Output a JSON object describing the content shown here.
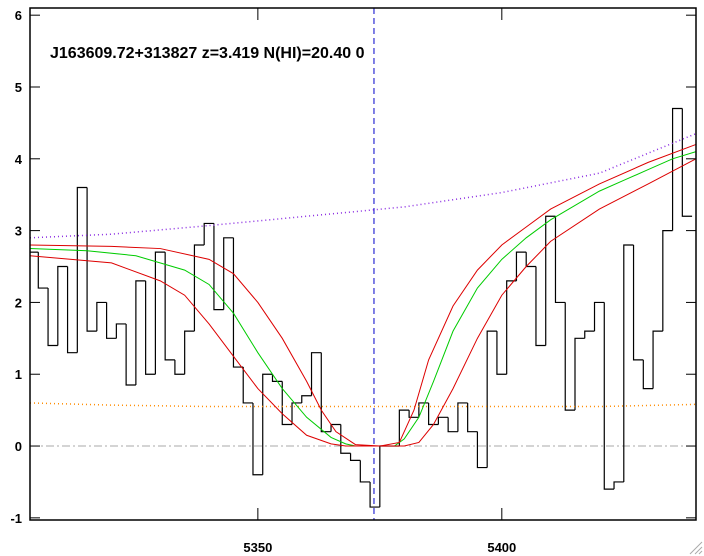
{
  "chart_data": {
    "type": "line",
    "annotation": "J163609.72+313827 z=3.419 N(HI)=20.40 0",
    "xlim": [
      5303.3,
      5439.8
    ],
    "ylim": [
      -1.03,
      6.1
    ],
    "xticks": [
      5350,
      5400
    ],
    "yticks": [
      -1,
      0,
      1,
      2,
      3,
      4,
      5,
      6
    ],
    "zero_line": 0,
    "vline": 5373.8,
    "series": [
      {
        "name": "flux",
        "style": "steps",
        "color": "#000000",
        "x": [
          5304,
          5306,
          5308,
          5310,
          5312,
          5314,
          5316,
          5318,
          5320,
          5322,
          5324,
          5326,
          5328,
          5330,
          5332,
          5334,
          5336,
          5338,
          5340,
          5342,
          5344,
          5346,
          5348,
          5350,
          5352,
          5354,
          5356,
          5358,
          5360,
          5362,
          5364,
          5366,
          5368,
          5370,
          5372,
          5374,
          5376,
          5378,
          5380,
          5382,
          5384,
          5386,
          5388,
          5390,
          5392,
          5394,
          5396,
          5398,
          5400,
          5402,
          5404,
          5406,
          5408,
          5410,
          5412,
          5414,
          5416,
          5418,
          5420,
          5422,
          5424,
          5426,
          5428,
          5430,
          5432,
          5434,
          5436,
          5438
        ],
        "values": [
          2.7,
          2.2,
          1.4,
          2.5,
          1.3,
          3.6,
          1.6,
          2.0,
          1.5,
          1.7,
          0.85,
          2.3,
          1.0,
          2.7,
          1.2,
          1.0,
          1.6,
          2.8,
          3.1,
          1.9,
          2.9,
          1.1,
          0.6,
          -0.4,
          1.0,
          0.9,
          0.3,
          0.6,
          0.7,
          1.3,
          0.2,
          0.3,
          -0.1,
          -0.2,
          -0.5,
          -0.85,
          0.0,
          0.0,
          0.5,
          0.4,
          0.6,
          0.3,
          0.4,
          0.2,
          0.6,
          0.2,
          -0.3,
          1.6,
          1.0,
          2.3,
          2.7,
          2.5,
          1.4,
          3.2,
          2.0,
          0.5,
          1.5,
          1.6,
          2.0,
          -0.6,
          -0.5,
          2.8,
          1.2,
          0.8,
          1.6,
          3.0,
          4.7,
          3.2
        ]
      },
      {
        "name": "continuum",
        "style": "dotted",
        "color": "#8a2be2",
        "x": [
          5303.3,
          5320,
          5340,
          5360,
          5380,
          5400,
          5420,
          5439.8
        ],
        "values": [
          2.9,
          2.95,
          3.07,
          3.2,
          3.33,
          3.53,
          3.8,
          4.35
        ]
      },
      {
        "name": "error",
        "style": "dotted",
        "color": "#ff8c00",
        "x": [
          5303.3,
          5320,
          5340,
          5360,
          5380,
          5400,
          5420,
          5439.8
        ],
        "values": [
          0.6,
          0.57,
          0.55,
          0.55,
          0.55,
          0.55,
          0.55,
          0.58
        ]
      },
      {
        "name": "fit",
        "style": "solid",
        "color": "#00cc00",
        "x": [
          5303.3,
          5315,
          5325,
          5335,
          5340,
          5345,
          5350,
          5355,
          5360,
          5365,
          5368,
          5370,
          5375,
          5378,
          5380,
          5383,
          5386,
          5390,
          5395,
          5400,
          5405,
          5410,
          5415,
          5420,
          5425,
          5430,
          5435,
          5439.8
        ],
        "values": [
          2.75,
          2.72,
          2.65,
          2.45,
          2.25,
          1.85,
          1.3,
          0.8,
          0.4,
          0.12,
          0.03,
          0,
          0,
          0,
          0.1,
          0.4,
          0.9,
          1.6,
          2.2,
          2.6,
          2.9,
          3.15,
          3.35,
          3.55,
          3.7,
          3.85,
          4.0,
          4.1
        ]
      },
      {
        "name": "fit-upper",
        "style": "solid",
        "color": "#dd0000",
        "x": [
          5303.3,
          5320,
          5330,
          5340,
          5345,
          5350,
          5355,
          5360,
          5363,
          5366,
          5370,
          5375,
          5379,
          5382,
          5385,
          5390,
          5395,
          5400,
          5405,
          5410,
          5420,
          5430,
          5439.8
        ],
        "values": [
          2.8,
          2.78,
          2.75,
          2.6,
          2.4,
          2.0,
          1.5,
          0.9,
          0.5,
          0.2,
          0.02,
          0,
          0.05,
          0.5,
          1.2,
          1.95,
          2.45,
          2.8,
          3.05,
          3.3,
          3.65,
          3.95,
          4.2
        ]
      },
      {
        "name": "fit-lower",
        "style": "solid",
        "color": "#dd0000",
        "x": [
          5303.3,
          5320,
          5330,
          5335,
          5340,
          5345,
          5350,
          5355,
          5360,
          5365,
          5368,
          5380,
          5383,
          5386,
          5390,
          5395,
          5400,
          5405,
          5410,
          5420,
          5430,
          5439.8
        ],
        "values": [
          2.65,
          2.55,
          2.3,
          2.1,
          1.7,
          1.25,
          0.8,
          0.45,
          0.15,
          0.03,
          0,
          0,
          0.05,
          0.3,
          0.8,
          1.5,
          2.1,
          2.5,
          2.85,
          3.3,
          3.65,
          4.0
        ]
      }
    ]
  }
}
